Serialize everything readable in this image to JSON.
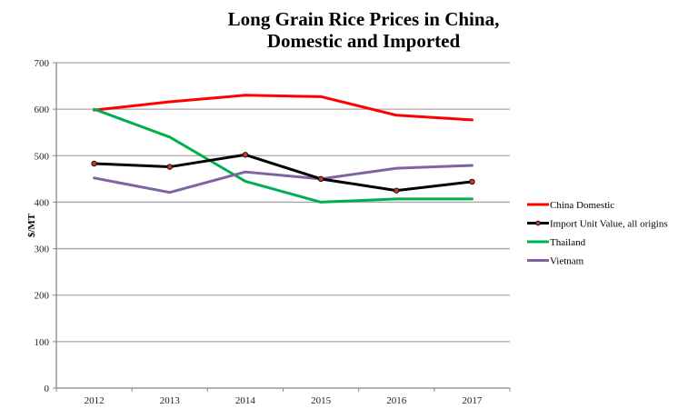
{
  "chart_data": {
    "type": "line",
    "title": [
      "Long Grain Rice Prices in China,",
      "Domestic and Imported"
    ],
    "xlabel": "",
    "ylabel": "$/MT",
    "x": [
      "2012",
      "2013",
      "2014",
      "2015",
      "2016",
      "2017"
    ],
    "ylim": [
      0,
      700
    ],
    "yticks": [
      0,
      100,
      200,
      300,
      400,
      500,
      600,
      700
    ],
    "grid": true,
    "legend_position": "right",
    "series": [
      {
        "name": "China Domestic",
        "color": "#ff0000",
        "markers": false,
        "values": [
          598,
          616,
          630,
          627,
          587,
          577
        ]
      },
      {
        "name": "Import Unit Value, all origins",
        "color": "#000000",
        "markers": true,
        "marker_color": "#c0392b",
        "values": [
          483,
          476,
          502,
          450,
          425,
          444
        ]
      },
      {
        "name": "Thailand",
        "color": "#00b050",
        "markers": false,
        "values": [
          600,
          540,
          445,
          400,
          407,
          407
        ]
      },
      {
        "name": "Vietnam",
        "color": "#8064a2",
        "markers": false,
        "values": [
          452,
          421,
          465,
          450,
          473,
          479
        ]
      }
    ]
  }
}
